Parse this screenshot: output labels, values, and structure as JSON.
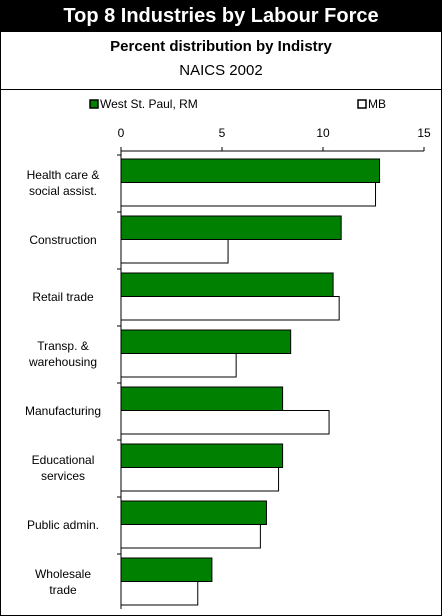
{
  "chart_data": {
    "type": "hbar",
    "title": "Top 8 Industries by Labour Force",
    "subtitle": "Percent distribution by Indistry",
    "subtitle2": "NAICS 2002",
    "categories": [
      "Health care & social assist.",
      "Construction",
      "Retail trade",
      "Transp. & warehousing",
      "Manufacturing",
      "Educational services",
      "Public admin.",
      "Wholesale trade"
    ],
    "series": [
      {
        "name": "West St. Paul, RM",
        "color": "#008000",
        "values": [
          12.8,
          10.9,
          10.5,
          8.4,
          8.0,
          8.0,
          7.2,
          4.5
        ]
      },
      {
        "name": "MB",
        "color": "#ffffff",
        "values": [
          12.6,
          5.3,
          10.8,
          5.7,
          10.3,
          7.8,
          6.9,
          3.8
        ]
      }
    ],
    "xlim": [
      0,
      15
    ],
    "xticks": [
      0,
      5,
      10,
      15
    ],
    "legend": "top"
  }
}
